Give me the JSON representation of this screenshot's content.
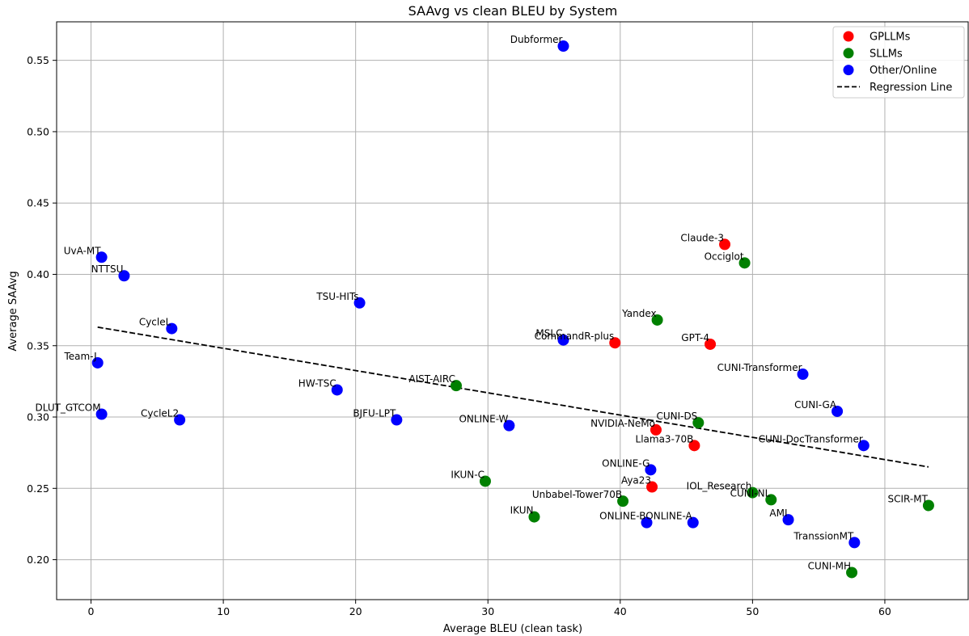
{
  "chart_data": {
    "type": "scatter",
    "title": "SAAvg vs clean BLEU by System",
    "xlabel": "Average BLEU (clean task)",
    "ylabel": "Average SAAvg",
    "xlim": [
      -2.6,
      66.3
    ],
    "ylim": [
      0.172,
      0.577
    ],
    "x_ticks": [
      0,
      10,
      20,
      30,
      40,
      50,
      60
    ],
    "y_ticks": [
      0.2,
      0.25,
      0.3,
      0.35,
      0.4,
      0.45,
      0.5,
      0.55
    ],
    "grid": true,
    "legend_position": "top-right",
    "legend": [
      {
        "label": "GPLLMs",
        "kind": "dot",
        "color": "#ff0000"
      },
      {
        "label": "SLLMs",
        "kind": "dot",
        "color": "#008000"
      },
      {
        "label": "Other/Online",
        "kind": "dot",
        "color": "#0000ff"
      },
      {
        "label": "Regression Line",
        "kind": "dashed-line",
        "color": "#000000"
      }
    ],
    "series_colors": {
      "GPLLMs": "#ff0000",
      "SLLMs": "#008000",
      "Other/Online": "#0000ff"
    },
    "points": [
      {
        "label": "Dubformer",
        "x": 35.7,
        "y": 0.56,
        "group": "Other/Online"
      },
      {
        "label": "Claude-3",
        "x": 47.9,
        "y": 0.421,
        "group": "GPLLMs"
      },
      {
        "label": "Occiglot",
        "x": 49.4,
        "y": 0.408,
        "group": "SLLMs"
      },
      {
        "label": "UvA-MT",
        "x": 0.8,
        "y": 0.412,
        "group": "Other/Online"
      },
      {
        "label": "NTTSU",
        "x": 2.5,
        "y": 0.399,
        "group": "Other/Online"
      },
      {
        "label": "TSU-HITs",
        "x": 20.3,
        "y": 0.38,
        "group": "Other/Online"
      },
      {
        "label": "Yandex",
        "x": 42.8,
        "y": 0.368,
        "group": "SLLMs"
      },
      {
        "label": "CycleL",
        "x": 6.1,
        "y": 0.362,
        "group": "Other/Online"
      },
      {
        "label": "MSLC",
        "x": 35.7,
        "y": 0.354,
        "group": "Other/Online"
      },
      {
        "label": "CommandR-plus",
        "x": 39.6,
        "y": 0.352,
        "group": "GPLLMs"
      },
      {
        "label": "GPT-4",
        "x": 46.8,
        "y": 0.351,
        "group": "GPLLMs"
      },
      {
        "label": "Team-J",
        "x": 0.5,
        "y": 0.338,
        "group": "Other/Online"
      },
      {
        "label": "CUNI-Transformer",
        "x": 53.8,
        "y": 0.33,
        "group": "Other/Online"
      },
      {
        "label": "AIST-AIRC",
        "x": 27.6,
        "y": 0.322,
        "group": "SLLMs"
      },
      {
        "label": "HW-TSC",
        "x": 18.6,
        "y": 0.319,
        "group": "Other/Online"
      },
      {
        "label": "CUNI-GA",
        "x": 56.4,
        "y": 0.304,
        "group": "Other/Online"
      },
      {
        "label": "DLUT_GTCOM",
        "x": 0.8,
        "y": 0.302,
        "group": "Other/Online"
      },
      {
        "label": "CycleL2",
        "x": 6.7,
        "y": 0.298,
        "group": "Other/Online"
      },
      {
        "label": "BJFU-LPT",
        "x": 23.1,
        "y": 0.298,
        "group": "Other/Online"
      },
      {
        "label": "CUNI-DS",
        "x": 45.9,
        "y": 0.296,
        "group": "SLLMs"
      },
      {
        "label": "ONLINE-W",
        "x": 31.6,
        "y": 0.294,
        "group": "Other/Online"
      },
      {
        "label": "NVIDIA-NeMo",
        "x": 42.7,
        "y": 0.291,
        "group": "GPLLMs"
      },
      {
        "label": "Llama3-70B",
        "x": 45.6,
        "y": 0.28,
        "group": "GPLLMs"
      },
      {
        "label": "CUNI-DocTransformer",
        "x": 58.4,
        "y": 0.28,
        "group": "Other/Online"
      },
      {
        "label": "ONLINE-G",
        "x": 42.3,
        "y": 0.263,
        "group": "Other/Online"
      },
      {
        "label": "IKUN-C",
        "x": 29.8,
        "y": 0.255,
        "group": "SLLMs"
      },
      {
        "label": "Aya23",
        "x": 42.4,
        "y": 0.251,
        "group": "GPLLMs"
      },
      {
        "label": "IOL_Research",
        "x": 50.0,
        "y": 0.247,
        "group": "SLLMs"
      },
      {
        "label": "CUNI-NL",
        "x": 51.4,
        "y": 0.242,
        "group": "SLLMs"
      },
      {
        "label": "Unbabel-Tower70B",
        "x": 40.2,
        "y": 0.241,
        "group": "SLLMs"
      },
      {
        "label": "SCIR-MT",
        "x": 63.3,
        "y": 0.238,
        "group": "SLLMs"
      },
      {
        "label": "IKUN",
        "x": 33.5,
        "y": 0.23,
        "group": "SLLMs"
      },
      {
        "label": "AMI",
        "x": 52.7,
        "y": 0.228,
        "group": "Other/Online"
      },
      {
        "label": "ONLINE-B",
        "x": 42.0,
        "y": 0.226,
        "group": "Other/Online"
      },
      {
        "label": "ONLINE-A",
        "x": 45.5,
        "y": 0.226,
        "group": "Other/Online"
      },
      {
        "label": "TranssionMT",
        "x": 57.7,
        "y": 0.212,
        "group": "Other/Online"
      },
      {
        "label": "CUNI-MH",
        "x": 57.5,
        "y": 0.191,
        "group": "SLLMs"
      }
    ],
    "regression_line": {
      "x": [
        0.5,
        63.3
      ],
      "y": [
        0.363,
        0.265
      ]
    }
  }
}
